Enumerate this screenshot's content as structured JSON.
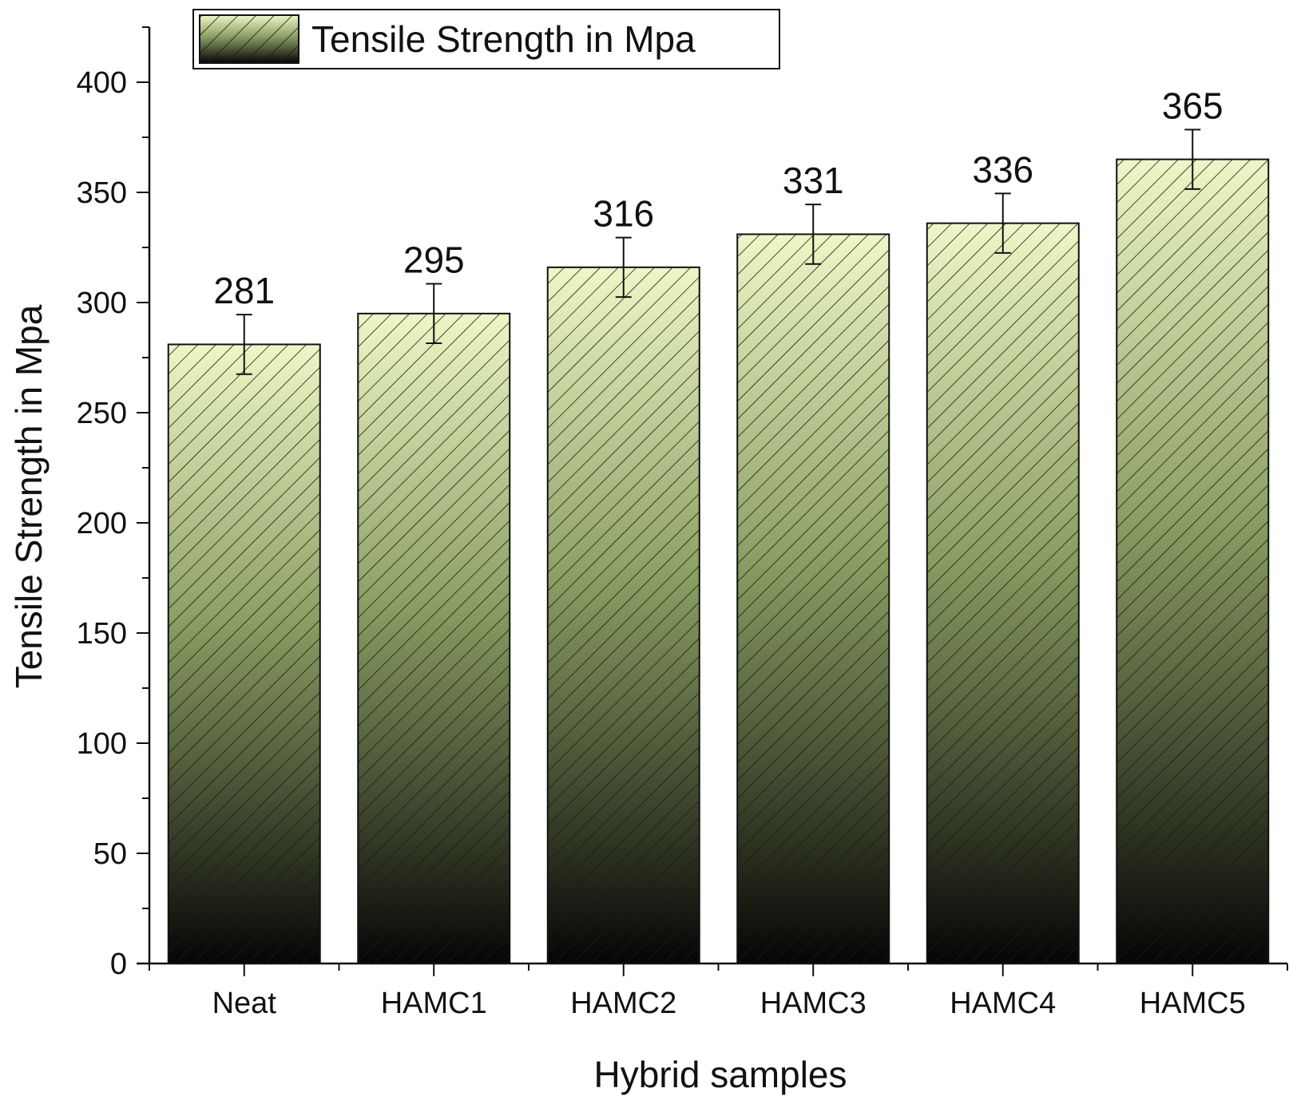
{
  "chart_data": {
    "type": "bar",
    "categories": [
      "Neat",
      "HAMC1",
      "HAMC2",
      "HAMC3",
      "HAMC4",
      "HAMC5"
    ],
    "series": [
      {
        "name": "Tensile Strength in Mpa",
        "values": [
          281,
          295,
          316,
          331,
          336,
          365
        ],
        "errors": [
          13.5,
          13.5,
          13.5,
          13.5,
          13.5,
          13.5
        ],
        "data_labels": [
          "281",
          "295",
          "316",
          "331",
          "336",
          "365"
        ]
      }
    ],
    "xlabel": "Hybrid samples",
    "ylabel": "Tensile Strength in Mpa",
    "ylim": [
      0,
      425
    ],
    "yticks": [
      0,
      50,
      100,
      150,
      200,
      250,
      300,
      350,
      400
    ],
    "ytick_labels": [
      "0",
      "50",
      "100",
      "150",
      "200",
      "250",
      "300",
      "350",
      "400"
    ],
    "grid": false,
    "legend": "top-left",
    "bar_fill": "gradient light-green to black with diagonal hatch",
    "colors": {
      "bar_top": "#eef7c6",
      "bar_mid": "#8a9e62",
      "bar_bottom": "#050505",
      "hatch": "#1a1a1a",
      "axis": "#111111"
    }
  }
}
